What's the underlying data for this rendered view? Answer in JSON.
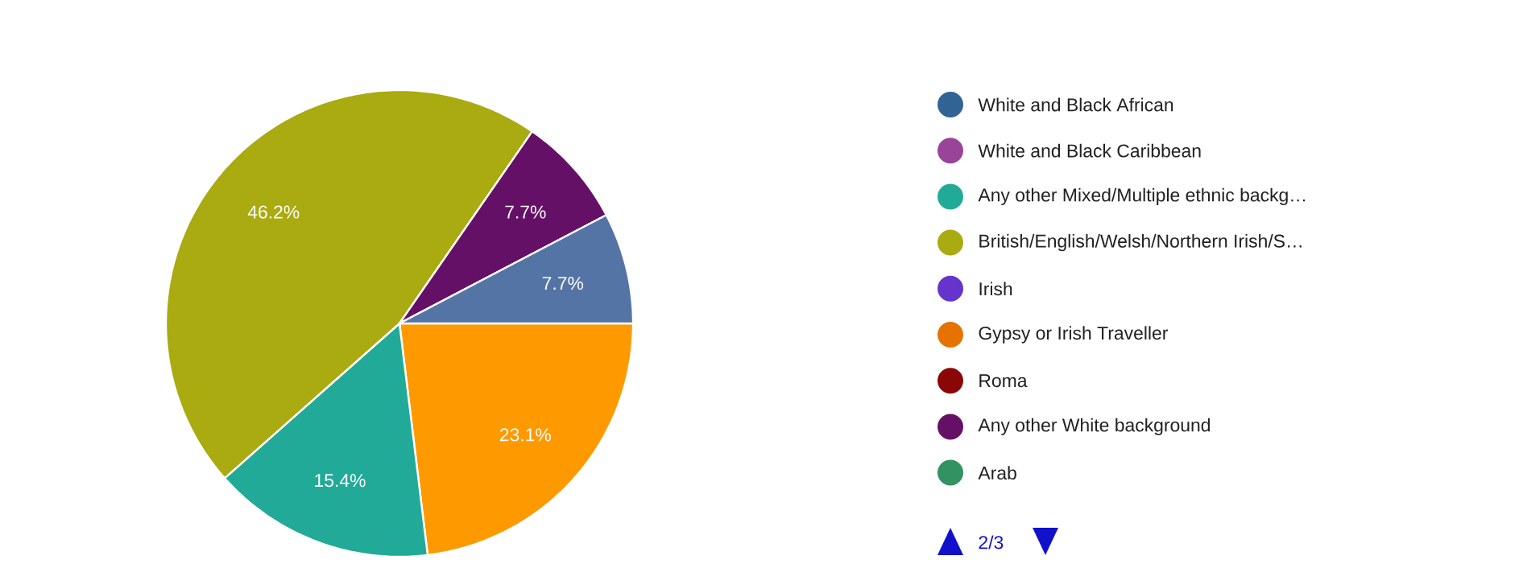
{
  "chart_data": {
    "type": "pie",
    "categories": [
      null,
      "White and Black African",
      "White and Black Caribbean",
      "Any other Mixed/Multiple ethnic backg…",
      "British/English/Welsh/Northern Irish/S…",
      "Irish",
      "Gypsy or Irish Traveller",
      "Roma",
      "Any other White background",
      "Arab",
      null
    ],
    "values": [
      23.1,
      0,
      0,
      15.4,
      46.2,
      0,
      0,
      0,
      7.7,
      0,
      7.7
    ],
    "value_labels": [
      "23.1%",
      null,
      null,
      "15.4%",
      "46.2%",
      null,
      null,
      null,
      "7.7%",
      null,
      "7.7%"
    ],
    "colors": [
      "#ff9900",
      "#316395",
      "#994499",
      "#22aa99",
      "#aaaa11",
      "#6633cc",
      "#e67300",
      "#8b0707",
      "#651067",
      "#329262",
      "#5574a6"
    ],
    "legend": "right",
    "annotations": [
      "2/3"
    ]
  }
}
